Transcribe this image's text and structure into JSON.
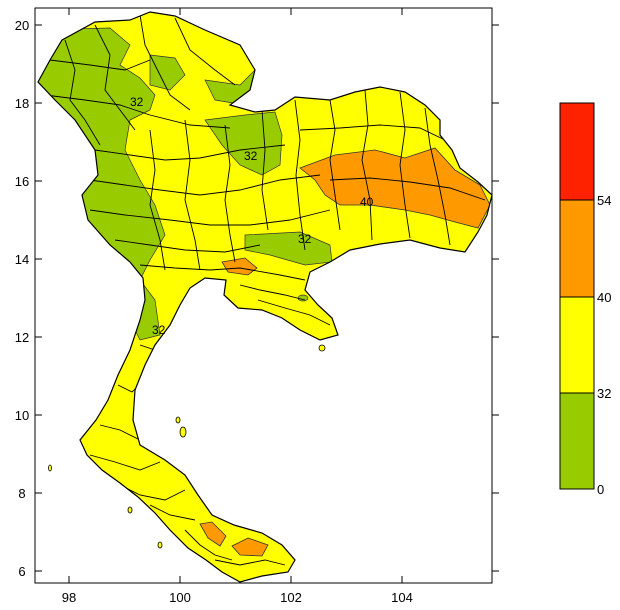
{
  "map": {
    "x_ticks": [
      "98",
      "100",
      "102",
      "104"
    ],
    "y_ticks": [
      "20",
      "18",
      "16",
      "14",
      "12",
      "10",
      "8",
      "6"
    ],
    "contour_labels": [
      "32",
      "32",
      "32",
      "32",
      "40"
    ]
  },
  "legend": {
    "levels": [
      "0",
      "32",
      "40",
      "54"
    ],
    "colors": [
      "#99cc00",
      "#ffff00",
      "#ff9900",
      "#ff2200"
    ]
  },
  "colors": {
    "green": "#99cc00",
    "yellow": "#ffff00",
    "orange": "#ff9900",
    "red": "#ff2200",
    "frame": "#000000"
  }
}
